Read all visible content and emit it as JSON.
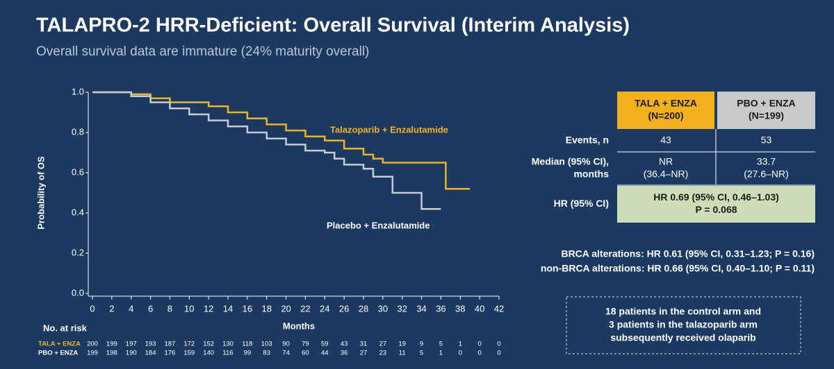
{
  "chart_data": {
    "type": "line",
    "step": true,
    "title": "TALAPRO-2 HRR-Deficient: Overall Survival (Interim Analysis)",
    "subtitle": "Overall survival data are immature (24% maturity overall)",
    "y_label": "Probability of OS",
    "x_label": "Months",
    "xlim": [
      0,
      42
    ],
    "xticks": [
      0,
      2,
      4,
      6,
      8,
      10,
      12,
      14,
      16,
      18,
      20,
      22,
      24,
      26,
      28,
      30,
      32,
      34,
      36,
      38,
      40,
      42
    ],
    "ylim": [
      0,
      1
    ],
    "yticks": [
      {
        "value": 0,
        "label": "0.0"
      },
      {
        "value": 0.2,
        "label": "0.2"
      },
      {
        "value": 0.4,
        "label": "0.4"
      },
      {
        "value": 0.6,
        "label": "0.6"
      },
      {
        "value": 0.8,
        "label": "0.8"
      },
      {
        "value": 1,
        "label": "1.0"
      }
    ],
    "series": [
      {
        "name": "Talazoparib + Enzalutamide",
        "color": "#f0b323",
        "x": [
          0,
          4,
          6,
          8,
          12,
          14,
          16,
          18,
          20,
          22,
          24,
          26,
          28,
          29,
          30,
          36.5,
          39
        ],
        "values": [
          1,
          0.99,
          0.97,
          0.95,
          0.93,
          0.9,
          0.87,
          0.84,
          0.81,
          0.78,
          0.76,
          0.72,
          0.69,
          0.67,
          0.65,
          0.52,
          0.52
        ]
      },
      {
        "name": "Placebo + Enzalutamide",
        "color": "#c8ccd2",
        "x": [
          0,
          4,
          6,
          8,
          10,
          12,
          14,
          16,
          18,
          20,
          22,
          24,
          25,
          26,
          28,
          29,
          31,
          34,
          36
        ],
        "values": [
          1,
          0.98,
          0.95,
          0.92,
          0.89,
          0.86,
          0.83,
          0.8,
          0.77,
          0.74,
          0.71,
          0.7,
          0.67,
          0.64,
          0.62,
          0.58,
          0.5,
          0.42,
          0.42
        ]
      }
    ],
    "risk_table": {
      "title": "No. at risk",
      "rows": [
        {
          "name": "TALA + ENZA",
          "values": [
            200,
            199,
            197,
            193,
            187,
            172,
            152,
            130,
            118,
            103,
            90,
            79,
            59,
            43,
            31,
            27,
            19,
            9,
            5,
            1,
            0,
            0
          ]
        },
        {
          "name": "PBO + ENZA",
          "values": [
            199,
            198,
            190,
            184,
            176,
            159,
            140,
            116,
            99,
            83,
            74,
            60,
            44,
            36,
            27,
            23,
            11,
            5,
            1,
            0,
            0,
            0
          ]
        }
      ]
    }
  },
  "table": {
    "headers": [
      [
        "TALA + ENZA",
        "(N=200)"
      ],
      [
        "PBO + ENZA",
        "(N=199)"
      ]
    ],
    "rows": [
      {
        "label": [
          "Events, n"
        ],
        "cells": [
          [
            "43"
          ],
          [
            "53"
          ]
        ]
      },
      {
        "label": [
          "Median (95% CI),",
          "months"
        ],
        "cells": [
          [
            "NR",
            "(36.4–NR)"
          ],
          [
            "33.7",
            "(27.6–NR)"
          ]
        ]
      },
      {
        "label": [
          "HR (95% CI)"
        ],
        "merged": [
          "HR 0.69 (95% CI, 0.46–1.03)",
          "P = 0.068"
        ]
      }
    ]
  },
  "notes": [
    "BRCA alterations: HR 0.61 (95% CI, 0.31–1.23; P = 0.16)",
    "non-BRCA alterations: HR 0.66 (95% CI, 0.40–1.10; P = 0.11)"
  ],
  "callout": [
    "18 patients in the control arm and",
    "3 patients in the talazoparib arm",
    "subsequently received olaparib"
  ]
}
